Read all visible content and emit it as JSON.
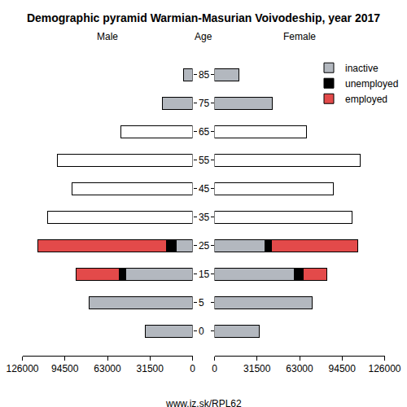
{
  "chart_data": {
    "type": "bar",
    "title": "Demographic pyramid Warmian-Masurian Voivodeship, year 2017",
    "orientation": "horizontal",
    "stacked": true,
    "y_label": "Age",
    "note": "www.iz.sk/RPL62",
    "legend": "top right",
    "categories": [
      "0",
      "5",
      "15",
      "25",
      "35",
      "45",
      "55",
      "65",
      "75",
      "85"
    ],
    "panels": [
      {
        "title": "Male",
        "xlim": [
          126000,
          0
        ],
        "xticks": [
          126000,
          94500,
          63000,
          31500,
          0
        ],
        "series": [
          {
            "name": "inactive",
            "color": "#b3b8bf",
            "values": [
              35100,
              76400,
              49700,
              12100,
              null,
              null,
              null,
              null,
              22400,
              6700
            ]
          },
          {
            "name": "unemployed",
            "color": "#000000",
            "values": [
              null,
              null,
              4800,
              7300,
              null,
              null,
              null,
              null,
              null,
              null
            ]
          },
          {
            "name": "employed",
            "color": "#e34a4a",
            "values": [
              null,
              null,
              31500,
              95000,
              null,
              null,
              null,
              null,
              null,
              null
            ]
          },
          {
            "color": "#ffffff",
            "values": [
              null,
              null,
              null,
              null,
              107300,
              89100,
              100000,
              53300,
              null,
              null
            ]
          }
        ]
      },
      {
        "title": "Female",
        "xlim": [
          0,
          126000
        ],
        "xticks": [
          0,
          31500,
          63000,
          94500,
          126000
        ],
        "series": [
          {
            "name": "inactive",
            "color": "#b3b8bf",
            "values": [
              33300,
              72100,
              58800,
              37600,
              null,
              null,
              null,
              null,
              43000,
              18200
            ]
          },
          {
            "name": "unemployed",
            "color": "#000000",
            "values": [
              null,
              null,
              6700,
              4800,
              null,
              null,
              null,
              null,
              null,
              null
            ]
          },
          {
            "name": "employed",
            "color": "#e34a4a",
            "values": [
              null,
              null,
              17600,
              63600,
              null,
              null,
              null,
              null,
              null,
              null
            ]
          },
          {
            "color": "#ffffff",
            "values": [
              null,
              null,
              null,
              null,
              101800,
              87900,
              107900,
              67900,
              null,
              null
            ]
          }
        ]
      }
    ]
  }
}
